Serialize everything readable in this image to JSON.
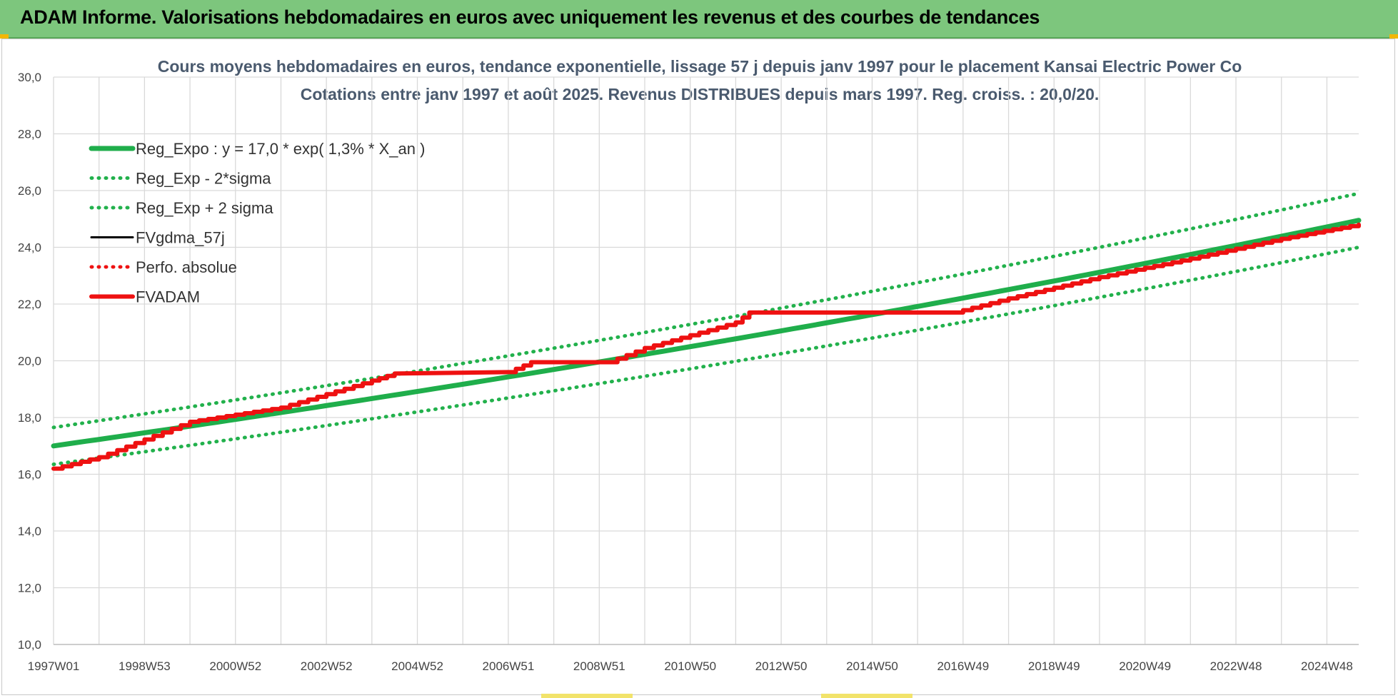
{
  "banner": {
    "title": "ADAM Informe. Valorisations hebdomadaires en euros avec uniquement les revenus et des courbes de tendances"
  },
  "colors": {
    "banner_bg": "#7dc67d",
    "trend_green": "#1fae4b",
    "sigma_green": "#22b14c",
    "fvgdma_black": "#000000",
    "fvadam_red": "#ee1111",
    "grid": "#d9d9d9"
  },
  "chart_data": {
    "type": "line",
    "title": "Cours moyens hebdomadaires en euros, tendance exponentielle, lissage 57 j depuis janv 1997  pour le placement Kansai Electric Power Co",
    "subtitle": "Cotations entre janv 1997 et août 2025.  Revenus DISTRIBUES depuis mars 1997. Reg. croiss. : 20,0/20.",
    "xlabel": "",
    "ylabel": "",
    "ylim": [
      10,
      30
    ],
    "xlim": [
      1997.0,
      2025.7
    ],
    "grid": true,
    "legend_position": "top-left",
    "y_ticks": [
      "30,0",
      "28,0",
      "26,0",
      "24,0",
      "22,0",
      "20,0",
      "18,0",
      "16,0",
      "14,0",
      "12,0",
      "10,0"
    ],
    "x_tick_labels": [
      {
        "label": "1997W01",
        "x": 1997.0
      },
      {
        "label": "1998W53",
        "x": 1999.0
      },
      {
        "label": "2000W52",
        "x": 2001.0
      },
      {
        "label": "2002W52",
        "x": 2003.0
      },
      {
        "label": "2004W52",
        "x": 2005.0
      },
      {
        "label": "2006W51",
        "x": 2007.0
      },
      {
        "label": "2008W51",
        "x": 2009.0
      },
      {
        "label": "2010W50",
        "x": 2011.0
      },
      {
        "label": "2012W50",
        "x": 2013.0
      },
      {
        "label": "2014W50",
        "x": 2015.0
      },
      {
        "label": "2016W49",
        "x": 2017.0
      },
      {
        "label": "2018W49",
        "x": 2019.0
      },
      {
        "label": "2020W49",
        "x": 2021.0
      },
      {
        "label": "2022W48",
        "x": 2023.0
      },
      {
        "label": "2024W48",
        "x": 2025.0
      }
    ],
    "series": [
      {
        "name": "Reg_Expo : y = 17,0 * exp( 1,3% *  X_an )",
        "style": "solid-thick",
        "color": "#1fae4b",
        "x": [
          1997.0,
          2025.7
        ],
        "y": [
          17.0,
          24.95
        ]
      },
      {
        "name": "Reg_Exp - 2*sigma",
        "style": "dotted",
        "color": "#22b14c",
        "x": [
          1997.0,
          2025.7
        ],
        "y": [
          16.35,
          24.0
        ]
      },
      {
        "name": "Reg_Exp + 2 sigma",
        "style": "dotted",
        "color": "#22b14c",
        "x": [
          1997.0,
          2025.7
        ],
        "y": [
          17.65,
          25.9
        ]
      },
      {
        "name": "FVgdma_57j",
        "style": "solid-thin",
        "color": "#000000",
        "x": [
          1997.0,
          1998.0,
          2000.0,
          2002.0,
          2004.0,
          2004.5,
          2007.0,
          2007.5,
          2009.2,
          2010.0,
          2012.0,
          2012.3,
          2016.8,
          2018.0,
          2020.0,
          2022.0,
          2024.0,
          2025.7
        ],
        "y": [
          16.2,
          16.6,
          17.85,
          18.35,
          19.3,
          19.55,
          19.6,
          19.95,
          19.95,
          20.45,
          21.35,
          21.7,
          21.7,
          22.2,
          22.95,
          23.6,
          24.3,
          24.8
        ]
      },
      {
        "name": "Perfo. absolue",
        "style": "dotted",
        "color": "#ee1111",
        "x": [
          1997.0,
          1998.0,
          2000.0,
          2002.0,
          2004.0,
          2004.5,
          2007.0,
          2007.5,
          2009.2,
          2010.0,
          2012.0,
          2012.3,
          2016.8,
          2018.0,
          2020.0,
          2022.0,
          2024.0,
          2025.7
        ],
        "y": [
          16.2,
          16.6,
          17.85,
          18.35,
          19.3,
          19.55,
          19.6,
          19.95,
          19.95,
          20.45,
          21.35,
          21.7,
          21.7,
          22.2,
          22.95,
          23.6,
          24.3,
          24.8
        ]
      },
      {
        "name": "FVADAM",
        "style": "staircase-thick",
        "color": "#ee1111",
        "x": [
          1997.0,
          1998.0,
          2000.0,
          2002.0,
          2004.0,
          2004.5,
          2007.0,
          2007.5,
          2009.2,
          2010.0,
          2012.0,
          2012.3,
          2016.8,
          2018.0,
          2020.0,
          2022.0,
          2024.0,
          2025.7
        ],
        "y": [
          16.2,
          16.6,
          17.85,
          18.35,
          19.3,
          19.55,
          19.6,
          19.95,
          19.95,
          20.45,
          21.35,
          21.7,
          21.7,
          22.2,
          22.95,
          23.6,
          24.3,
          24.8
        ]
      }
    ]
  }
}
